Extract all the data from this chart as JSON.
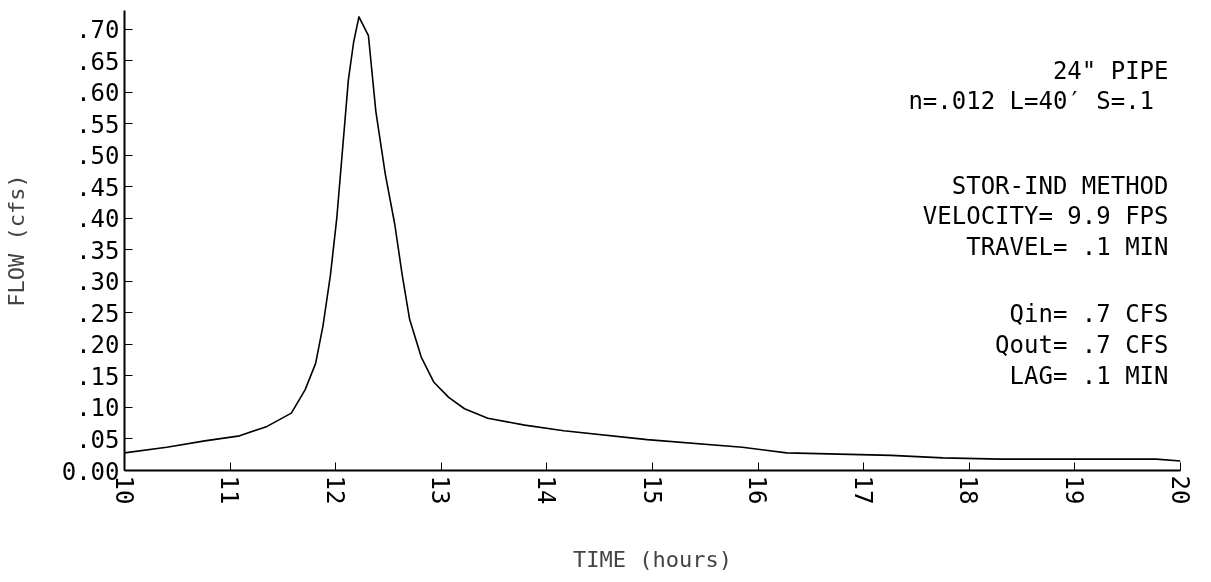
{
  "chart_data": {
    "type": "line",
    "xlabel": "TIME (hours)",
    "ylabel": "FLOW (cfs)",
    "x": [
      10.0,
      10.4,
      10.76,
      11.09,
      11.35,
      11.58,
      11.71,
      11.81,
      11.88,
      11.95,
      12.01,
      12.07,
      12.12,
      12.17,
      12.22,
      12.31,
      12.38,
      12.47,
      12.56,
      12.63,
      12.7,
      12.81,
      12.93,
      13.07,
      13.22,
      13.44,
      13.79,
      14.16,
      14.95,
      15.85,
      16.27,
      17.26,
      17.75,
      18.29,
      19.77,
      20.0
    ],
    "series": [
      {
        "color": "#000000",
        "values": [
          0.028,
          0.037,
          0.047,
          0.055,
          0.07,
          0.091,
          0.128,
          0.17,
          0.23,
          0.31,
          0.4,
          0.52,
          0.62,
          0.68,
          0.72,
          0.69,
          0.57,
          0.47,
          0.39,
          0.31,
          0.24,
          0.18,
          0.14,
          0.116,
          0.098,
          0.083,
          0.072,
          0.063,
          0.049,
          0.037,
          0.028,
          0.024,
          0.02,
          0.018,
          0.018,
          0.015
        ]
      }
    ],
    "xlim": [
      10,
      20
    ],
    "ylim": [
      0,
      0.73
    ],
    "xticks": [
      10,
      11,
      12,
      13,
      14,
      15,
      16,
      17,
      18,
      19,
      20
    ],
    "yticks": [
      {
        "value": 0,
        "label": "0.00"
      },
      {
        "value": 0.05,
        "label": ".05"
      },
      {
        "value": 0.1,
        "label": ".10"
      },
      {
        "value": 0.15,
        "label": ".15"
      },
      {
        "value": 0.2,
        "label": ".20"
      },
      {
        "value": 0.25,
        "label": ".25"
      },
      {
        "value": 0.3,
        "label": ".30"
      },
      {
        "value": 0.35,
        "label": ".35"
      },
      {
        "value": 0.4,
        "label": ".40"
      },
      {
        "value": 0.45,
        "label": ".45"
      },
      {
        "value": 0.5,
        "label": ".50"
      },
      {
        "value": 0.55,
        "label": ".55"
      },
      {
        "value": 0.6,
        "label": ".60"
      },
      {
        "value": 0.65,
        "label": ".65"
      },
      {
        "value": 0.7,
        "label": ".70"
      }
    ],
    "annotations": [
      "24\" PIPE\nn=.012 L=40′  S=.1",
      "STOR-IND METHOD\nVELOCITY= 9.9 FPS\nTRAVEL= .1 MIN",
      "Qin= .7 CFS\nQout= .7 CFS\nLAG= .1 MIN"
    ],
    "grid": false,
    "marker": "none",
    "line_style": "solid"
  }
}
